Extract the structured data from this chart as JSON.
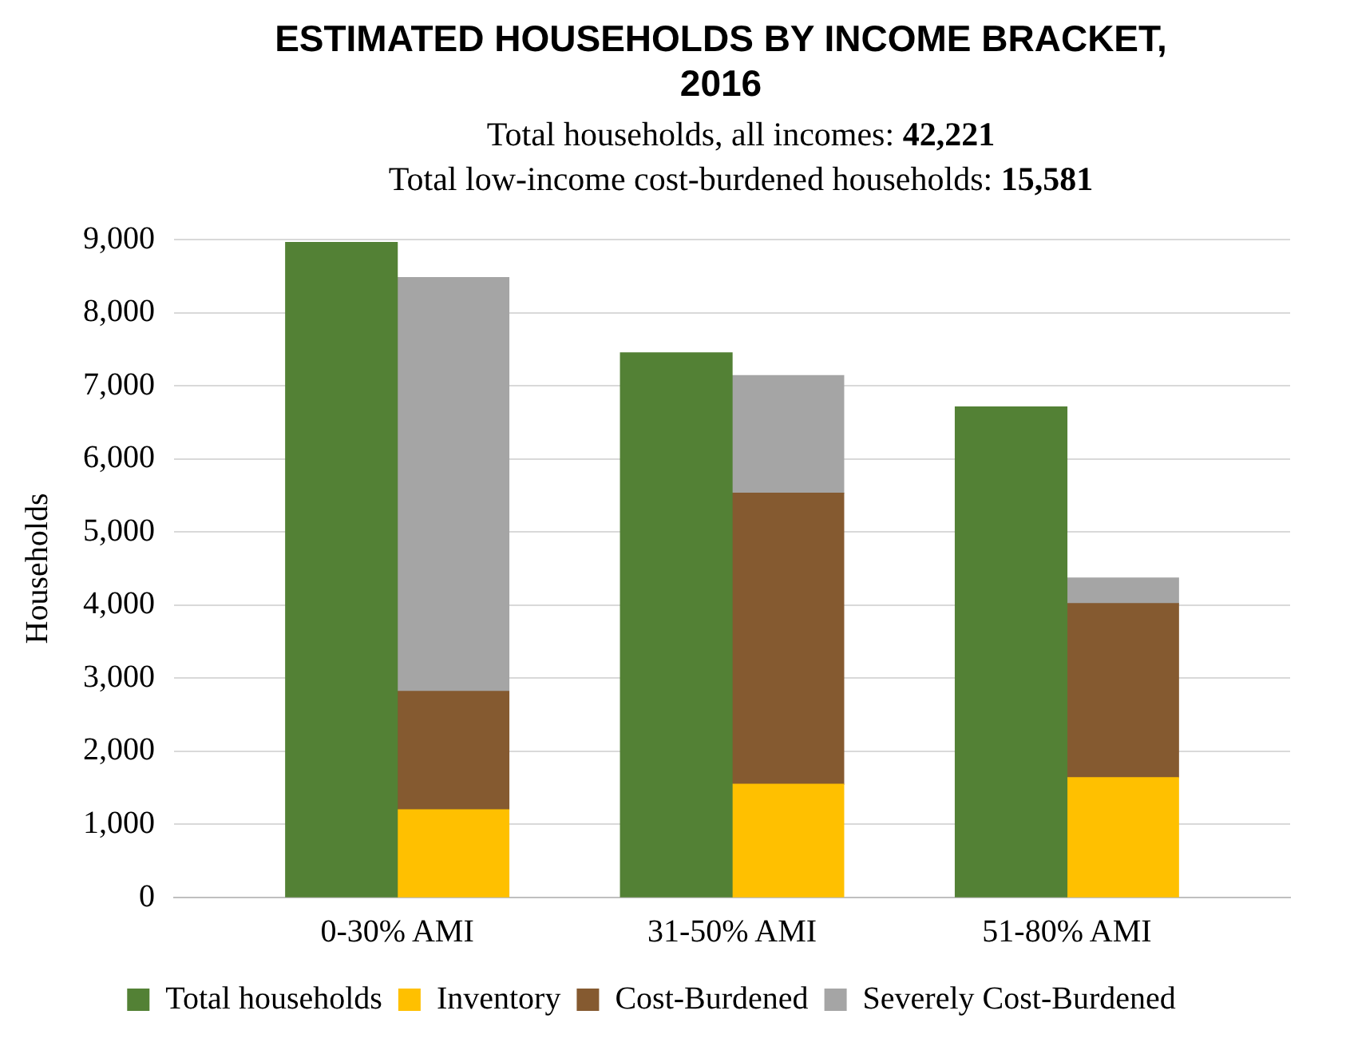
{
  "chart_data": {
    "type": "bar",
    "title": "ESTIMATED HOUSEHOLDS BY INCOME BRACKET, 2016",
    "subtitle": "Total households, all incomes: 42,221\nTotal low-income cost-burdened households: 15,581",
    "ylabel": "Households",
    "categories": [
      null,
      "0-30% AMI",
      null,
      null,
      "31-50% AMI",
      null,
      null,
      "51-80% AMI",
      null,
      null
    ],
    "stacked": true,
    "series": [
      {
        "name": "Total households",
        "color": "#538135",
        "values": [
          null,
          8960,
          null,
          null,
          7450,
          null,
          null,
          6710,
          null,
          null
        ]
      },
      {
        "name": "Inventory",
        "color": "#ffc000",
        "values": [
          null,
          null,
          1200,
          null,
          null,
          1550,
          null,
          null,
          1640,
          null
        ]
      },
      {
        "name": "Cost-Burdened",
        "color": "#855a30",
        "values": [
          null,
          null,
          1620,
          null,
          null,
          3980,
          null,
          null,
          2380,
          null
        ]
      },
      {
        "name": "Severely Cost-Burdened",
        "color": "#a5a5a5",
        "values": [
          null,
          null,
          5660,
          null,
          null,
          1610,
          null,
          null,
          350,
          null
        ]
      }
    ],
    "ylim": [
      0,
      9000
    ],
    "yticks": [
      0,
      {
        "value": 1000,
        "label": "1,000"
      },
      {
        "value": 2000,
        "label": "2,000"
      },
      {
        "value": 3000,
        "label": "3,000"
      },
      {
        "value": 4000,
        "label": "4,000"
      },
      {
        "value": 5000,
        "label": "5,000"
      },
      {
        "value": 6000,
        "label": "6,000"
      },
      {
        "value": 7000,
        "label": "7,000"
      },
      {
        "value": 8000,
        "label": "8,000"
      },
      {
        "value": 9000,
        "label": "9,000"
      }
    ],
    "grid": "y",
    "legend": "bottom"
  }
}
